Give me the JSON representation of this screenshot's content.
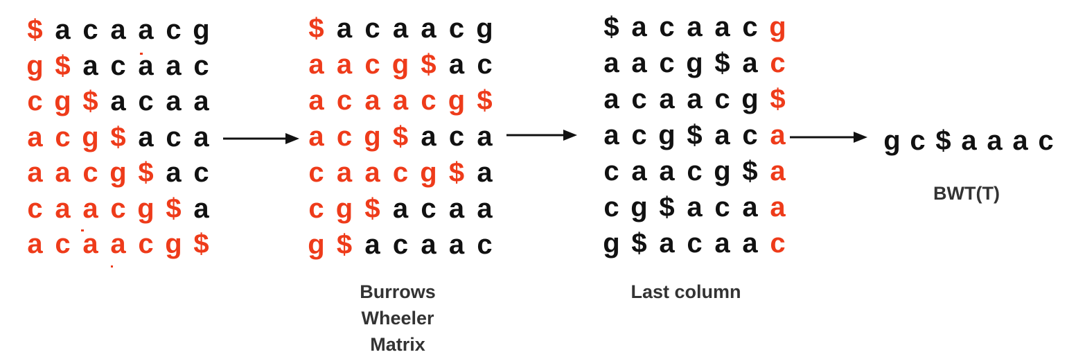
{
  "colors": {
    "red": "#ee3b1a",
    "black": "#111111",
    "caption": "#333333"
  },
  "rotations": [
    "$acaacg",
    "g$acaac",
    "cg$acaa",
    "acg$aca",
    "aacg$ac",
    "caacg$a",
    "acaacg$"
  ],
  "rotation_red_counts": [
    1,
    2,
    3,
    4,
    5,
    6,
    7
  ],
  "bwm_rows": [
    "$acaacg",
    "aacg$ac",
    "acaacg$",
    "acg$aca",
    "caacg$a",
    "cg$acaa",
    "g$acaac"
  ],
  "bwm_red_counts": [
    1,
    5,
    7,
    4,
    6,
    3,
    2
  ],
  "last_column_rows": [
    "$acaacg",
    "aacg$ac",
    "acaacg$",
    "acg$aca",
    "caacg$a",
    "cg$acaa",
    "g$acaac"
  ],
  "bwt_result": "gc$aaac",
  "captions": {
    "bwm_line1": "Burrows",
    "bwm_line2": "Wheeler",
    "bwm_line3": "Matrix",
    "last_column": "Last column",
    "bwt": "BWT(T)"
  }
}
